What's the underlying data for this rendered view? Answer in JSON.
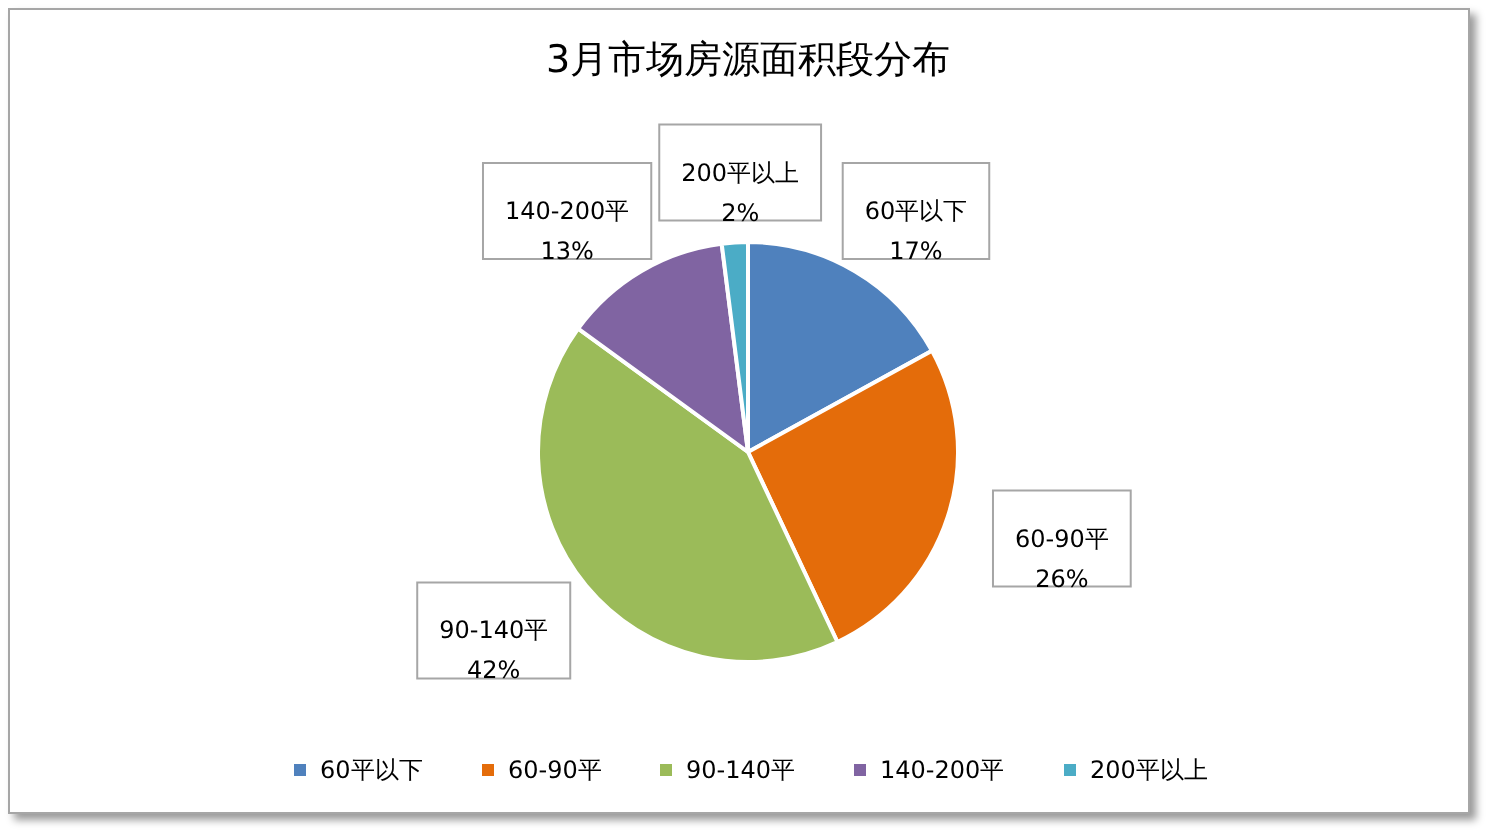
{
  "chart_data": {
    "type": "pie",
    "title": "3月市场房源面积段分布",
    "categories": [
      "60平以下",
      "60-90平",
      "90-140平",
      "140-200平",
      "200平以上"
    ],
    "values": [
      17,
      26,
      42,
      13,
      2
    ],
    "value_labels": [
      "17%",
      "26%",
      "42%",
      "13%",
      "2%"
    ],
    "colors": [
      "#4f81bd",
      "#e46c0a",
      "#9bbb59",
      "#8064a2",
      "#4bacc6"
    ],
    "legend": "bottom"
  }
}
